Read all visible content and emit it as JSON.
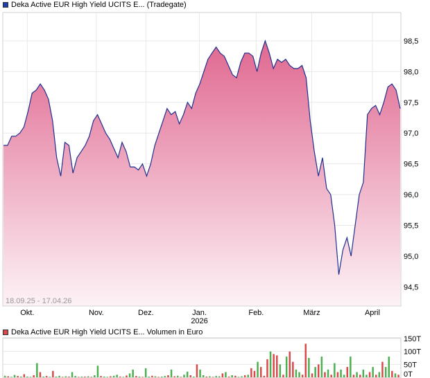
{
  "colors": {
    "price_line": "#1f2f8f",
    "price_fill_top": "#e06890",
    "price_fill_bottom": "#fdf2f6",
    "grid": "#e8e8e8",
    "volume_up": "#4caf50",
    "volume_down": "#d84a4a"
  },
  "legend": {
    "price_label": "Deka Active EUR High Yield UCITS E... (Tradegate)",
    "volume_label": "Deka Active EUR High Yield UCITS E... Volumen in Euro"
  },
  "date_range_label": "18.09.25 - 17.04.26",
  "chart_data": [
    {
      "type": "area",
      "ylim": [
        94.2,
        98.95
      ],
      "y_ticks": [
        "98,5",
        "98,0",
        "97,5",
        "97,0",
        "96,5",
        "96,0",
        "95,5",
        "95,0",
        "94,5"
      ],
      "y_tick_values": [
        98.5,
        98.0,
        97.5,
        97.0,
        96.5,
        96.0,
        95.5,
        95.0,
        94.5
      ],
      "x_ticks": [
        {
          "label": "Okt.",
          "sublabel": "",
          "pos": 0.06
        },
        {
          "label": "Nov.",
          "sublabel": "",
          "pos": 0.234
        },
        {
          "label": "Dez.",
          "sublabel": "",
          "pos": 0.359
        },
        {
          "label": "Jan.",
          "sublabel": "2026",
          "pos": 0.494
        },
        {
          "label": "Feb.",
          "sublabel": "",
          "pos": 0.637
        },
        {
          "label": "März",
          "sublabel": "",
          "pos": 0.777
        },
        {
          "label": "April",
          "sublabel": "",
          "pos": 0.93
        }
      ],
      "values": [
        96.8,
        96.8,
        96.95,
        96.95,
        97.0,
        97.1,
        97.35,
        97.65,
        97.7,
        97.8,
        97.7,
        97.55,
        97.2,
        96.6,
        96.3,
        96.85,
        96.8,
        96.35,
        96.6,
        96.7,
        96.8,
        96.95,
        97.2,
        97.3,
        97.15,
        97.0,
        96.9,
        96.75,
        96.6,
        96.85,
        96.7,
        96.45,
        96.45,
        96.4,
        96.5,
        96.3,
        96.5,
        96.8,
        97.0,
        97.2,
        97.4,
        97.3,
        97.35,
        97.15,
        97.3,
        97.5,
        97.4,
        97.65,
        97.8,
        98.0,
        98.2,
        98.3,
        98.4,
        98.3,
        98.25,
        98.1,
        97.95,
        97.9,
        98.15,
        98.3,
        98.3,
        98.25,
        98.0,
        98.3,
        98.5,
        98.3,
        98.05,
        98.2,
        98.15,
        98.2,
        98.1,
        98.05,
        98.05,
        98.1,
        97.9,
        97.2,
        96.7,
        96.3,
        96.6,
        96.1,
        96.0,
        95.5,
        94.7,
        95.1,
        95.3,
        95.0,
        95.5,
        96.0,
        96.2,
        97.3,
        97.4,
        97.45,
        97.3,
        97.5,
        97.75,
        97.8,
        97.7,
        97.4
      ]
    },
    {
      "type": "bar",
      "ylim": [
        0,
        150
      ],
      "y_ticks": [
        "150T",
        "100T",
        "50T",
        "0T"
      ],
      "y_tick_values": [
        150,
        100,
        50,
        0
      ],
      "values": [
        6,
        4,
        2,
        9,
        5,
        3,
        12,
        3,
        2,
        8,
        55,
        20,
        3,
        5,
        2,
        25,
        3,
        6,
        2,
        4,
        3,
        20,
        5,
        2,
        3,
        3,
        4,
        2,
        8,
        45,
        5,
        3,
        2,
        4,
        6,
        10,
        3,
        2,
        7,
        15,
        30,
        5,
        3,
        2,
        35,
        3,
        6,
        4,
        2,
        3,
        5,
        8,
        30,
        4,
        6,
        2,
        10,
        22,
        8,
        3,
        50,
        30,
        8,
        3,
        4,
        2,
        5,
        4,
        15,
        20,
        3,
        8,
        6,
        2,
        4,
        8,
        10,
        35,
        25,
        60,
        40,
        6,
        70,
        100,
        90,
        85,
        50,
        10,
        80,
        100,
        60,
        30,
        20,
        10,
        130,
        75,
        15,
        40,
        50,
        80,
        20,
        30,
        10,
        55,
        20,
        30,
        10,
        40,
        80,
        10,
        20,
        10,
        30,
        10,
        20,
        40,
        10,
        20,
        60,
        40,
        80,
        25,
        15,
        10
      ],
      "colors_up": [
        true,
        false,
        true,
        true,
        false,
        true,
        false,
        true,
        true,
        false,
        true,
        false,
        true,
        false,
        true,
        false,
        true,
        true,
        false,
        true,
        false,
        true,
        true,
        false,
        true,
        false,
        true,
        false,
        true,
        true,
        false,
        true,
        true,
        false,
        true,
        true,
        false,
        true,
        false,
        true,
        true,
        false,
        true,
        false,
        true,
        true,
        false,
        true,
        false,
        true,
        true,
        false,
        true,
        false,
        true,
        false,
        true,
        true,
        false,
        true,
        false,
        true,
        true,
        false,
        true,
        false,
        true,
        true,
        false,
        true,
        false,
        true,
        false,
        true,
        true,
        false,
        true,
        false,
        false,
        true,
        false,
        false,
        false,
        true,
        false,
        false,
        true,
        false,
        true,
        false,
        false,
        true,
        true,
        false,
        false,
        true,
        false,
        true,
        false,
        true,
        false,
        true,
        false,
        true,
        false,
        true,
        true,
        false,
        true,
        false,
        true,
        false,
        true,
        true,
        false,
        true,
        false,
        true,
        false,
        true,
        true,
        false,
        true,
        false
      ]
    }
  ]
}
